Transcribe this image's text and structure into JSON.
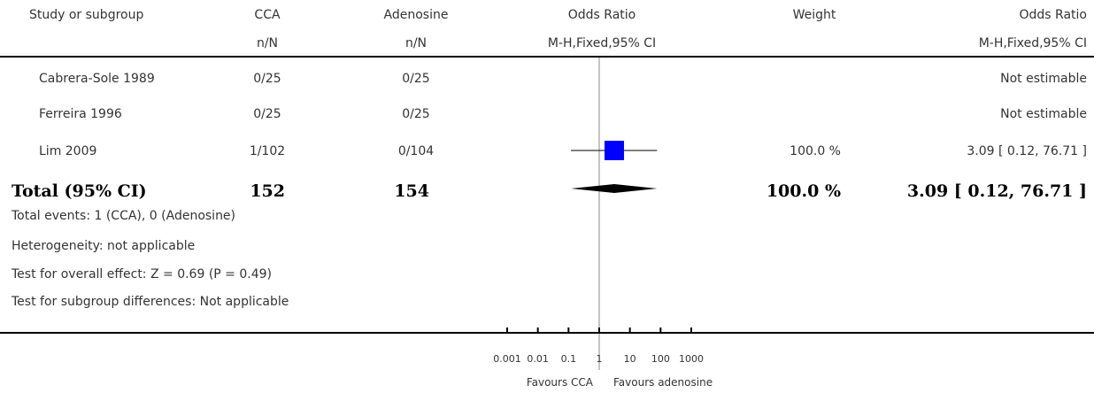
{
  "header": {
    "study_col": "Study or subgroup",
    "group1": "CCA",
    "group1_sub": "n/N",
    "group2": "Adenosine",
    "group2_sub": "n/N",
    "or_plot": "Odds Ratio",
    "or_plot_sub": "M-H,Fixed,95% CI",
    "weight": "Weight",
    "or_text": "Odds Ratio",
    "or_text_sub": "M-H,Fixed,95% CI"
  },
  "studies": [
    {
      "name": "Cabrera-Sole 1989",
      "g1": "0/25",
      "g2": "0/25",
      "weight": "",
      "ci_text": "Not estimable"
    },
    {
      "name": "Ferreira 1996",
      "g1": "0/25",
      "g2": "0/25",
      "weight": "",
      "ci_text": "Not estimable"
    },
    {
      "name": "Lim 2009",
      "g1": "1/102",
      "g2": "0/104",
      "weight": "100.0 %",
      "ci_text": "3.09 [ 0.12, 76.71 ]"
    }
  ],
  "total": {
    "label": "Total (95% CI)",
    "g1": "152",
    "g2": "154",
    "weight": "100.0 %",
    "ci_text": "3.09 [ 0.12, 76.71 ]"
  },
  "footnotes": [
    "Total events: 1 (CCA), 0 (Adenosine)",
    "Heterogeneity: not applicable",
    "Test for overall effect: Z = 0.69 (P = 0.49)",
    "Test for subgroup differences: Not applicable"
  ],
  "axis": {
    "ticks": [
      "0.001",
      "0.01",
      "0.1",
      "1",
      "10",
      "100",
      "1000"
    ],
    "favours_left": "Favours CCA",
    "favours_right": "Favours adenosine"
  },
  "colors": {
    "study_marker": "#0000ff",
    "diamond": "#000000"
  },
  "chart_data": {
    "type": "forest",
    "scale": "log",
    "xlim": [
      0.001,
      1000
    ],
    "null_line": 1,
    "studies": [
      {
        "name": "Cabrera-Sole 1989",
        "estimate": null,
        "ci": null
      },
      {
        "name": "Ferreira 1996",
        "estimate": null,
        "ci": null
      },
      {
        "name": "Lim 2009",
        "estimate": 3.09,
        "ci": [
          0.12,
          76.71
        ],
        "weight": 100.0
      }
    ],
    "pooled": {
      "estimate": 3.09,
      "ci": [
        0.12,
        76.71
      ]
    }
  }
}
